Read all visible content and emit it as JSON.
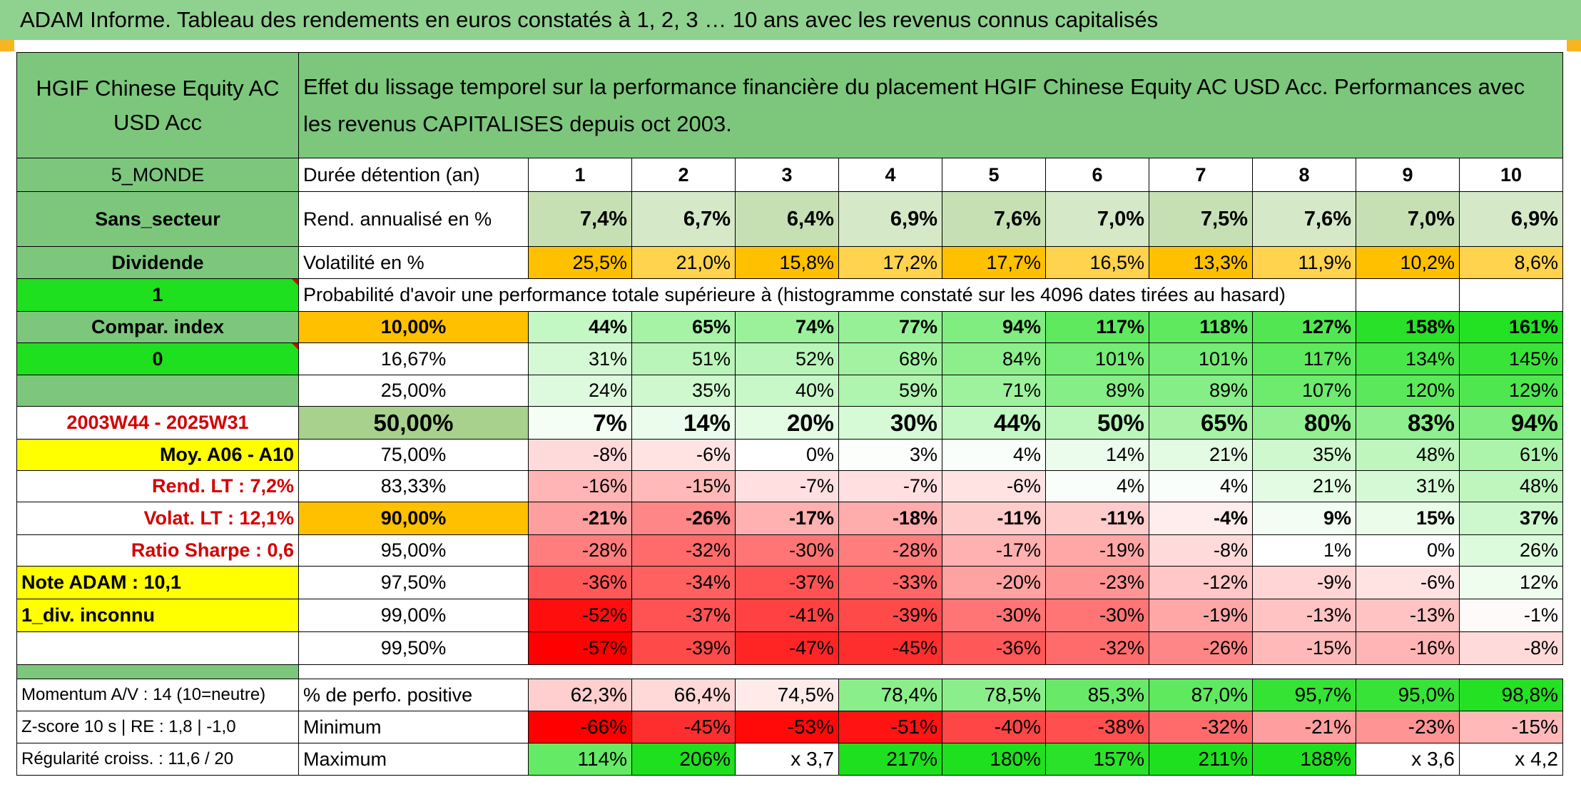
{
  "title": "ADAM Informe. Tableau des rendements en euros constatés à 1, 2, 3 … 10 ans avec les revenus connus capitalisés",
  "fund": {
    "name": "HGIF Chinese Equity AC USD Acc",
    "description": "Effet du lissage temporel sur la performance financière du placement HGIF Chinese Equity AC USD Acc. Performances avec les revenus CAPITALISES depuis oct 2003."
  },
  "side": {
    "region": "5_MONDE",
    "sector": "Sans_secteur",
    "dividend": "Dividende",
    "flag1": "1",
    "compar": "Compar. index",
    "flag0": "0",
    "period": "2003W44 - 2025W31",
    "moy": "Moy. A06 - A10",
    "rend_lt": "Rend. LT :   7,2%",
    "volat_lt": "Volat. LT :   12,1%",
    "sharpe": "Ratio Sharpe :    0,6",
    "note": "Note ADAM : 10,1",
    "div_inconnu": "1_div. inconnu",
    "momentum": "Momentum A/V : 14 (10=neutre)",
    "zscore": "Z-score 10 s | RE : 1,8 | -1,0",
    "regularite": "Régularité croiss. : 11,6 / 20"
  },
  "labels": {
    "duree": "Durée détention (an)",
    "rend": "Rend. annualisé en %",
    "volat": "Volatilité en %",
    "proba": "Probabilité d'avoir une performance totale supérieure à (histogramme constaté sur les 4096 dates tirées au hasard)",
    "positive": "% de perfo. positive",
    "minimum": "Minimum",
    "maximum": "Maximum"
  },
  "years": [
    "1",
    "2",
    "3",
    "4",
    "5",
    "6",
    "7",
    "8",
    "9",
    "10"
  ],
  "rend": [
    "7,4%",
    "6,7%",
    "6,4%",
    "6,9%",
    "7,6%",
    "7,0%",
    "7,5%",
    "7,6%",
    "7,0%",
    "6,9%"
  ],
  "volat": [
    "25,5%",
    "21,0%",
    "15,8%",
    "17,2%",
    "17,7%",
    "16,5%",
    "13,3%",
    "11,9%",
    "10,2%",
    "8,6%"
  ],
  "prob_rows": [
    {
      "label": "10,00%",
      "values": [
        "44%",
        "65%",
        "74%",
        "77%",
        "94%",
        "117%",
        "118%",
        "127%",
        "158%",
        "161%"
      ]
    },
    {
      "label": "16,67%",
      "values": [
        "31%",
        "51%",
        "52%",
        "68%",
        "84%",
        "101%",
        "101%",
        "117%",
        "134%",
        "145%"
      ]
    },
    {
      "label": "25,00%",
      "values": [
        "24%",
        "35%",
        "40%",
        "59%",
        "71%",
        "89%",
        "89%",
        "107%",
        "120%",
        "129%"
      ]
    },
    {
      "label": "50,00%",
      "values": [
        "7%",
        "14%",
        "20%",
        "30%",
        "44%",
        "50%",
        "65%",
        "80%",
        "83%",
        "94%"
      ]
    },
    {
      "label": "75,00%",
      "values": [
        "-8%",
        "-6%",
        "0%",
        "3%",
        "4%",
        "14%",
        "21%",
        "35%",
        "48%",
        "61%"
      ]
    },
    {
      "label": "83,33%",
      "values": [
        "-16%",
        "-15%",
        "-7%",
        "-7%",
        "-6%",
        "4%",
        "4%",
        "21%",
        "31%",
        "48%"
      ]
    },
    {
      "label": "90,00%",
      "values": [
        "-21%",
        "-26%",
        "-17%",
        "-18%",
        "-11%",
        "-11%",
        "-4%",
        "9%",
        "15%",
        "37%"
      ]
    },
    {
      "label": "95,00%",
      "values": [
        "-28%",
        "-32%",
        "-30%",
        "-28%",
        "-17%",
        "-19%",
        "-8%",
        "1%",
        "0%",
        "26%"
      ]
    },
    {
      "label": "97,50%",
      "values": [
        "-36%",
        "-34%",
        "-37%",
        "-33%",
        "-20%",
        "-23%",
        "-12%",
        "-9%",
        "-6%",
        "12%"
      ]
    },
    {
      "label": "99,00%",
      "values": [
        "-52%",
        "-37%",
        "-41%",
        "-39%",
        "-30%",
        "-30%",
        "-19%",
        "-13%",
        "-13%",
        "-1%"
      ]
    },
    {
      "label": "99,50%",
      "values": [
        "-57%",
        "-39%",
        "-47%",
        "-45%",
        "-36%",
        "-32%",
        "-26%",
        "-15%",
        "-16%",
        "-8%"
      ]
    }
  ],
  "positive": [
    "62,3%",
    "66,4%",
    "74,5%",
    "78,4%",
    "78,5%",
    "85,3%",
    "87,0%",
    "95,7%",
    "95,0%",
    "98,8%"
  ],
  "minimum": [
    "-66%",
    "-45%",
    "-53%",
    "-51%",
    "-40%",
    "-38%",
    "-32%",
    "-21%",
    "-23%",
    "-15%"
  ],
  "maximum": [
    "114%",
    "206%",
    "x 3,7",
    "217%",
    "180%",
    "157%",
    "211%",
    "188%",
    "x 3,6",
    "x 4,2"
  ],
  "colors": {
    "title_bg": "#8fd18f",
    "header_green": "#7cc77c",
    "rend_bg": "#c6e0b4",
    "volat_orange": "#ffc000",
    "flag_green": "#1ee01e",
    "highlight_yellow": "#ffff00",
    "text_red": "#d40000",
    "heat_red": "#ff0000",
    "heat_green": "#1ee01e"
  }
}
